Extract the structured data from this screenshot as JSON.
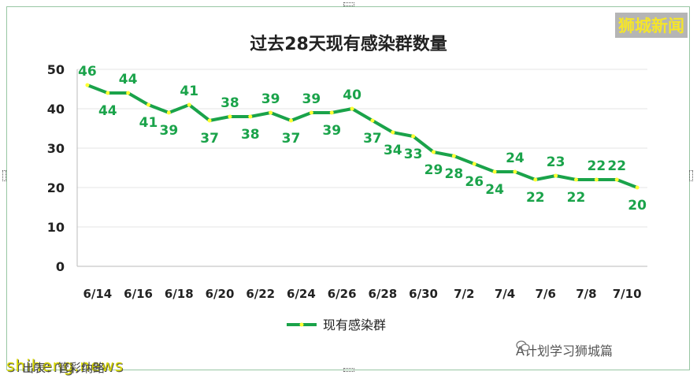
{
  "brand_watermark": "狮城新闻",
  "footer": {
    "site": "shiheng.news",
    "source_label": "出表：管彩纳路",
    "wechat_label": "A计划学习狮城篇"
  },
  "colors": {
    "line": "#1aa34a",
    "marker": "#ffff33",
    "label": "#1aa34a",
    "watermark": "#f5e52a"
  },
  "chart_data": {
    "type": "line",
    "title": "过去28天现有感染群数量",
    "xlabel": "",
    "ylabel": "",
    "ylim": [
      0,
      50
    ],
    "yticks": [
      0,
      10,
      20,
      30,
      40,
      50
    ],
    "grid": true,
    "legend_position": "bottom-center",
    "x_tick_labels": [
      "6/14",
      "6/16",
      "6/18",
      "6/20",
      "6/22",
      "6/24",
      "6/26",
      "6/28",
      "6/30",
      "7/2",
      "7/4",
      "7/6",
      "7/8",
      "7/10"
    ],
    "categories": [
      "6/14",
      "6/15",
      "6/16",
      "6/17",
      "6/18",
      "6/19",
      "6/20",
      "6/21",
      "6/22",
      "6/23",
      "6/24",
      "6/25",
      "6/26",
      "6/27",
      "6/28",
      "6/29",
      "6/30",
      "7/1",
      "7/2",
      "7/3",
      "7/4",
      "7/5",
      "7/6",
      "7/7",
      "7/8",
      "7/9",
      "7/10",
      "7/11"
    ],
    "series": [
      {
        "name": "现有感染群",
        "values": [
          46,
          44,
          44,
          41,
          39,
          41,
          37,
          38,
          38,
          39,
          37,
          39,
          39,
          40,
          37,
          34,
          33,
          29,
          28,
          26,
          24,
          24,
          22,
          23,
          22,
          22,
          22,
          20
        ]
      }
    ]
  }
}
